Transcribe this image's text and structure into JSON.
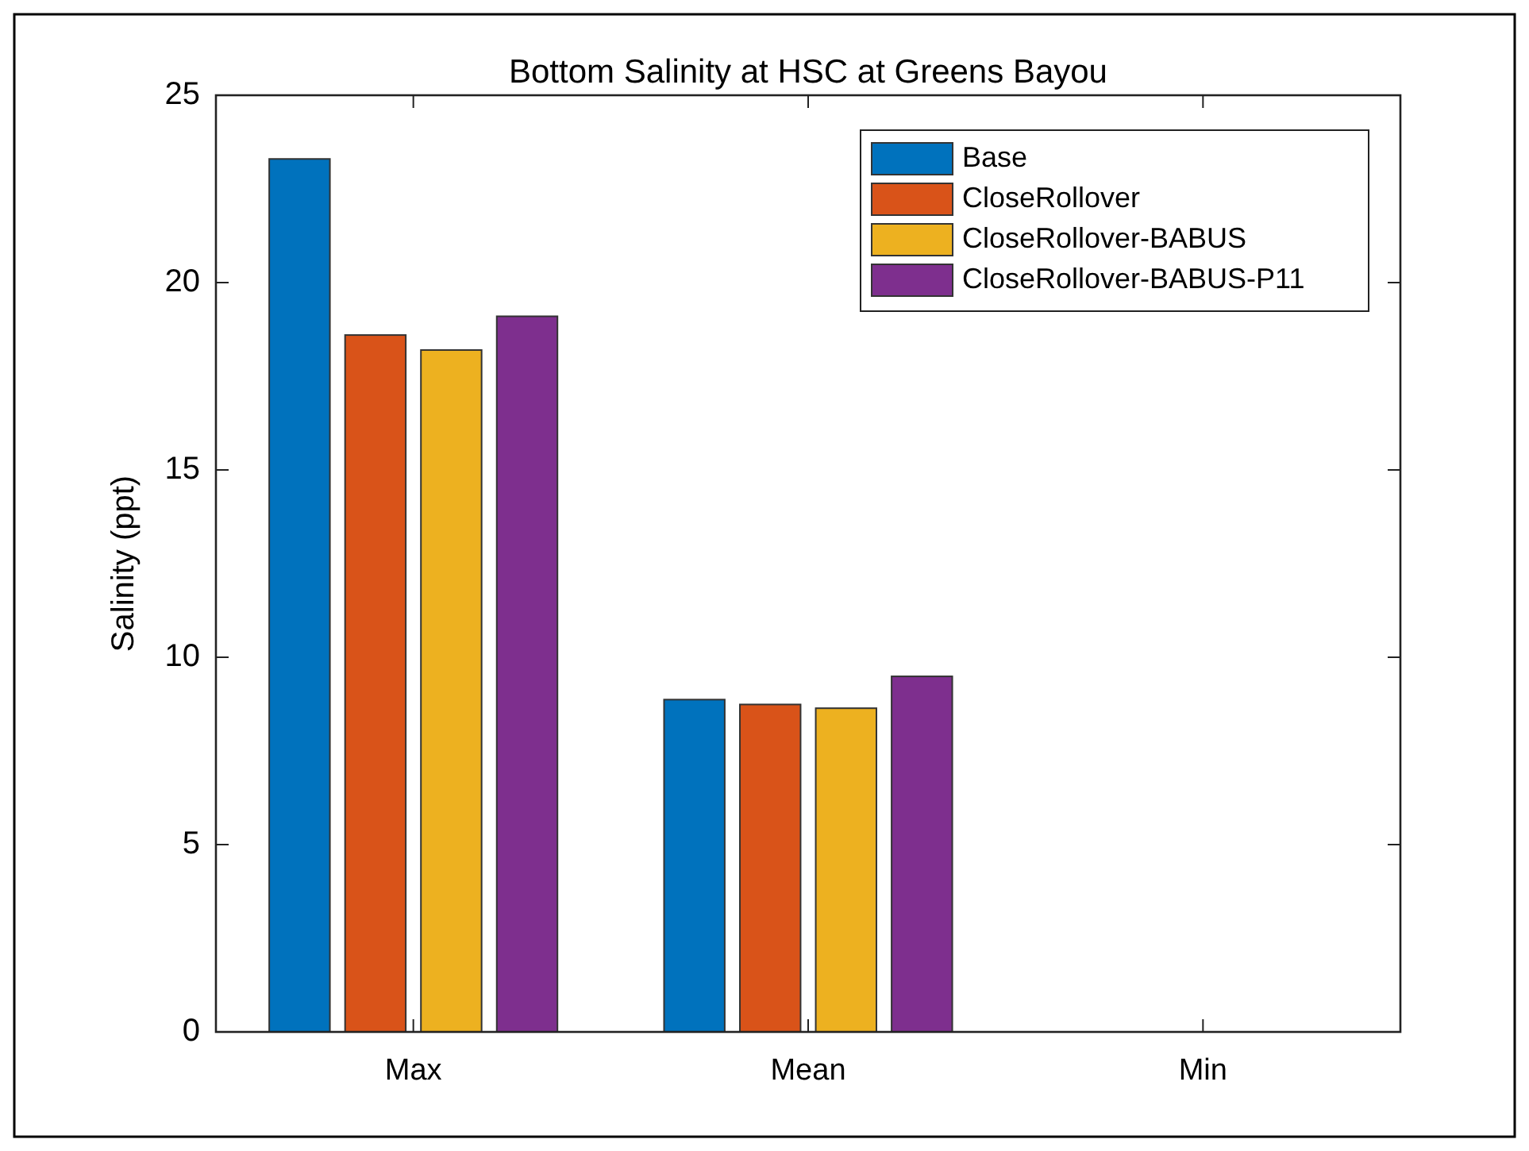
{
  "chart_data": {
    "type": "bar",
    "title": "Bottom Salinity at HSC at Greens Bayou",
    "ylabel": "Salinity (ppt)",
    "categories": [
      "Max",
      "Mean",
      "Min"
    ],
    "series": [
      {
        "name": "Base",
        "color": "#0072bd",
        "values": [
          23.3,
          8.87,
          0
        ]
      },
      {
        "name": "CloseRollover",
        "color": "#d95319",
        "values": [
          18.6,
          8.74,
          0
        ]
      },
      {
        "name": "CloseRollover-BABUS",
        "color": "#edb120",
        "values": [
          18.2,
          8.64,
          0
        ]
      },
      {
        "name": "CloseRollover-BABUS-P11",
        "color": "#7e2f8e",
        "values": [
          19.1,
          9.49,
          0
        ]
      }
    ],
    "ylim": [
      0,
      25
    ],
    "yticks": [
      0,
      5,
      10,
      15,
      20,
      25
    ],
    "grid": false,
    "legend": "top right"
  }
}
